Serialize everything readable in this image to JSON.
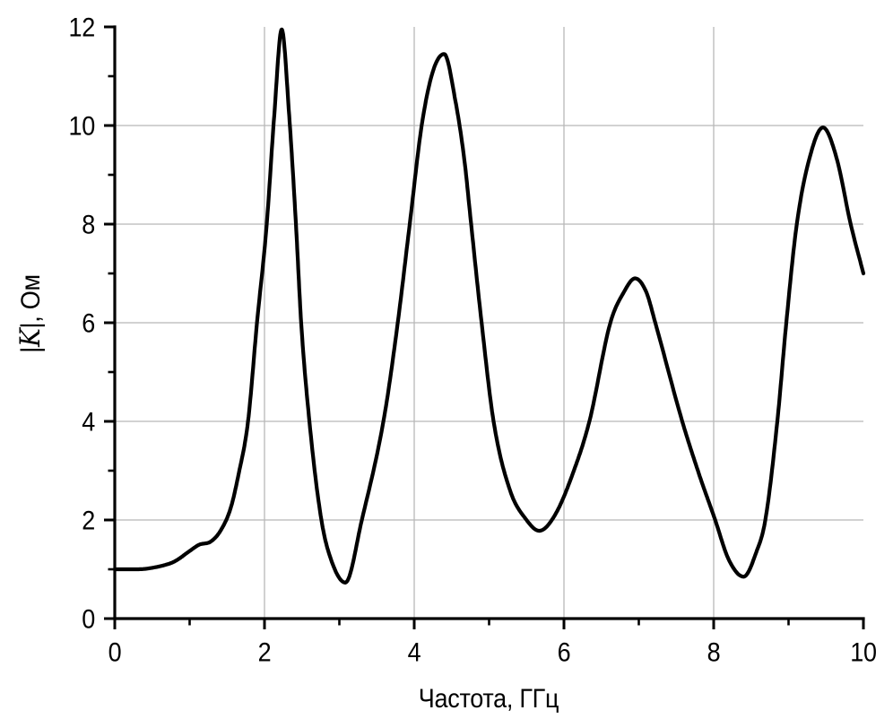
{
  "figure": {
    "background": "#ffffff"
  },
  "chart_data": {
    "type": "line",
    "title": "",
    "xlabel": "Частота, ГГц",
    "ylabel": "|K|, Ом",
    "ylabel_parts": [
      {
        "text": "|",
        "italic": false
      },
      {
        "text": "K",
        "italic": true
      },
      {
        "text": "|, Ом",
        "italic": false
      }
    ],
    "xlim": [
      0,
      10
    ],
    "ylim": [
      0,
      12
    ],
    "x_major_ticks": [
      0,
      2,
      4,
      6,
      8,
      10
    ],
    "x_minor_ticks": [
      1,
      3,
      5,
      7,
      9
    ],
    "y_major_ticks": [
      0,
      2,
      4,
      6,
      8,
      10,
      12
    ],
    "y_minor_ticks": [
      1,
      3,
      5,
      7,
      9,
      11
    ],
    "grid": {
      "x_lines": [
        2,
        4,
        6,
        8
      ],
      "y_lines": [
        2,
        4,
        6,
        8,
        10
      ],
      "color": "#b8b8b8"
    },
    "line_color": "#000000",
    "axis_color": "#000000",
    "legend": null,
    "series": [
      {
        "name": "|K|",
        "points": [
          [
            0.0,
            1.0
          ],
          [
            0.3,
            1.0
          ],
          [
            0.6,
            1.06
          ],
          [
            0.8,
            1.16
          ],
          [
            1.0,
            1.37
          ],
          [
            1.13,
            1.5
          ],
          [
            1.28,
            1.56
          ],
          [
            1.42,
            1.8
          ],
          [
            1.55,
            2.25
          ],
          [
            1.65,
            2.9
          ],
          [
            1.78,
            4.0
          ],
          [
            1.9,
            6.0
          ],
          [
            2.03,
            8.0
          ],
          [
            2.13,
            10.2
          ],
          [
            2.23,
            11.95
          ],
          [
            2.33,
            10.2
          ],
          [
            2.42,
            8.0
          ],
          [
            2.49,
            6.0
          ],
          [
            2.6,
            4.0
          ],
          [
            2.76,
            2.0
          ],
          [
            2.9,
            1.15
          ],
          [
            3.08,
            0.73
          ],
          [
            3.3,
            2.0
          ],
          [
            3.6,
            4.1
          ],
          [
            3.78,
            6.0
          ],
          [
            3.94,
            8.0
          ],
          [
            4.1,
            10.0
          ],
          [
            4.25,
            11.1
          ],
          [
            4.4,
            11.45
          ],
          [
            4.55,
            10.5
          ],
          [
            4.67,
            9.3
          ],
          [
            4.76,
            8.0
          ],
          [
            4.9,
            6.0
          ],
          [
            5.06,
            4.0
          ],
          [
            5.28,
            2.6
          ],
          [
            5.5,
            2.0
          ],
          [
            5.67,
            1.78
          ],
          [
            5.88,
            2.1
          ],
          [
            6.12,
            2.95
          ],
          [
            6.34,
            4.0
          ],
          [
            6.62,
            6.0
          ],
          [
            6.8,
            6.62
          ],
          [
            6.95,
            6.9
          ],
          [
            7.1,
            6.62
          ],
          [
            7.22,
            6.0
          ],
          [
            7.58,
            4.0
          ],
          [
            7.8,
            2.95
          ],
          [
            8.02,
            2.0
          ],
          [
            8.2,
            1.2
          ],
          [
            8.4,
            0.85
          ],
          [
            8.57,
            1.35
          ],
          [
            8.69,
            2.0
          ],
          [
            8.85,
            4.0
          ],
          [
            8.97,
            6.0
          ],
          [
            9.11,
            8.0
          ],
          [
            9.3,
            9.45
          ],
          [
            9.46,
            9.96
          ],
          [
            9.64,
            9.35
          ],
          [
            9.83,
            8.0
          ],
          [
            10.0,
            7.0
          ]
        ]
      }
    ]
  }
}
